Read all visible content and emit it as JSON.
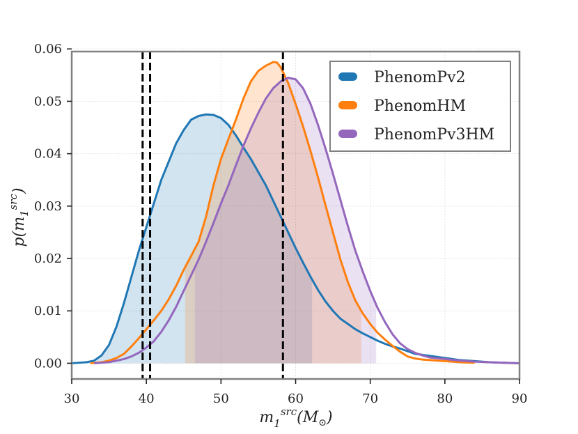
{
  "chart_data": {
    "type": "area",
    "title": "",
    "xlabel": "m₁ˢʳᶜ (M⊙)",
    "ylabel": "p(m₁ˢʳᶜ)",
    "xlim": [
      30,
      90
    ],
    "ylim": [
      -0.003,
      0.0595
    ],
    "xticks": [
      30,
      40,
      50,
      60,
      70,
      80,
      90
    ],
    "xtick_labels": [
      "30",
      "40",
      "50",
      "60",
      "70",
      "80",
      "90"
    ],
    "yticks": [
      0.0,
      0.01,
      0.02,
      0.03,
      0.04,
      0.05,
      0.06
    ],
    "ytick_labels": [
      "0.00",
      "0.01",
      "0.02",
      "0.03",
      "0.04",
      "0.05",
      "0.06"
    ],
    "grid": true,
    "legend_position": "top-right",
    "vlines": [
      39.5,
      40.5,
      58.3
    ],
    "series": [
      {
        "name": "PhenomPv2",
        "color": "#1f77b4",
        "shade_range": [
          30.0,
          62.2
        ],
        "points": [
          [
            30.0,
            0.0
          ],
          [
            32.0,
            0.0002
          ],
          [
            33.0,
            0.0005
          ],
          [
            34.0,
            0.0015
          ],
          [
            35.0,
            0.0035
          ],
          [
            36.0,
            0.007
          ],
          [
            37.0,
            0.0115
          ],
          [
            38.0,
            0.0165
          ],
          [
            39.0,
            0.0215
          ],
          [
            40.0,
            0.026
          ],
          [
            41.0,
            0.0305
          ],
          [
            42.0,
            0.035
          ],
          [
            43.0,
            0.0385
          ],
          [
            44.0,
            0.042
          ],
          [
            45.0,
            0.0445
          ],
          [
            46.0,
            0.0465
          ],
          [
            47.0,
            0.0472
          ],
          [
            48.0,
            0.0475
          ],
          [
            49.0,
            0.0474
          ],
          [
            50.0,
            0.0468
          ],
          [
            51.0,
            0.0455
          ],
          [
            52.0,
            0.0435
          ],
          [
            53.0,
            0.0412
          ],
          [
            54.0,
            0.039
          ],
          [
            55.0,
            0.0365
          ],
          [
            56.0,
            0.034
          ],
          [
            57.0,
            0.031
          ],
          [
            58.0,
            0.028
          ],
          [
            59.0,
            0.025
          ],
          [
            60.0,
            0.022
          ],
          [
            61.0,
            0.0192
          ],
          [
            62.0,
            0.0165
          ],
          [
            63.0,
            0.014
          ],
          [
            64.0,
            0.0118
          ],
          [
            65.0,
            0.01
          ],
          [
            66.0,
            0.0085
          ],
          [
            67.0,
            0.0075
          ],
          [
            68.0,
            0.0065
          ],
          [
            69.0,
            0.0057
          ],
          [
            70.0,
            0.005
          ],
          [
            71.0,
            0.0043
          ],
          [
            72.0,
            0.0037
          ],
          [
            73.0,
            0.0032
          ],
          [
            74.0,
            0.0028
          ],
          [
            75.0,
            0.0023
          ],
          [
            76.0,
            0.0018
          ],
          [
            77.0,
            0.0016
          ],
          [
            78.0,
            0.0014
          ],
          [
            79.0,
            0.0012
          ],
          [
            80.0,
            0.001
          ],
          [
            81.0,
            0.0008
          ],
          [
            82.0,
            0.0006
          ],
          [
            84.0,
            0.0004
          ],
          [
            86.0,
            0.0002
          ],
          [
            88.0,
            0.0001
          ],
          [
            90.0,
            0.0
          ]
        ]
      },
      {
        "name": "PhenomHM",
        "color": "#ff7f0e",
        "shade_range": [
          45.2,
          68.8
        ],
        "points": [
          [
            32.5,
            0.0
          ],
          [
            34.0,
            0.0002
          ],
          [
            35.0,
            0.0005
          ],
          [
            36.0,
            0.001
          ],
          [
            37.0,
            0.0018
          ],
          [
            38.0,
            0.0032
          ],
          [
            39.0,
            0.0048
          ],
          [
            40.0,
            0.0065
          ],
          [
            41.0,
            0.0082
          ],
          [
            42.0,
            0.01
          ],
          [
            43.0,
            0.0122
          ],
          [
            44.0,
            0.0148
          ],
          [
            45.0,
            0.0178
          ],
          [
            46.0,
            0.0205
          ],
          [
            47.0,
            0.0232
          ],
          [
            48.0,
            0.028
          ],
          [
            49.0,
            0.034
          ],
          [
            50.0,
            0.039
          ],
          [
            51.0,
            0.0428
          ],
          [
            52.0,
            0.0465
          ],
          [
            53.0,
            0.0505
          ],
          [
            54.0,
            0.0538
          ],
          [
            55.0,
            0.0558
          ],
          [
            56.0,
            0.0568
          ],
          [
            57.0,
            0.0575
          ],
          [
            57.5,
            0.0574
          ],
          [
            58.0,
            0.0565
          ],
          [
            59.0,
            0.0535
          ],
          [
            60.0,
            0.0495
          ],
          [
            61.0,
            0.0452
          ],
          [
            62.0,
            0.0405
          ],
          [
            63.0,
            0.0355
          ],
          [
            64.0,
            0.0302
          ],
          [
            65.0,
            0.025
          ],
          [
            66.0,
            0.0198
          ],
          [
            67.0,
            0.0155
          ],
          [
            68.0,
            0.012
          ],
          [
            69.0,
            0.0095
          ],
          [
            70.0,
            0.0075
          ],
          [
            71.0,
            0.0058
          ],
          [
            72.0,
            0.0045
          ],
          [
            73.0,
            0.0033
          ],
          [
            74.0,
            0.0022
          ],
          [
            75.0,
            0.0013
          ],
          [
            76.0,
            0.0009
          ],
          [
            77.0,
            0.0007
          ],
          [
            78.0,
            0.0006
          ],
          [
            80.0,
            0.0004
          ],
          [
            82.0,
            0.0002
          ],
          [
            84.0,
            0.0001
          ]
        ]
      },
      {
        "name": "PhenomPv3HM",
        "color": "#9467bd",
        "shade_range": [
          46.5,
          70.8
        ],
        "points": [
          [
            33.0,
            0.0
          ],
          [
            35.0,
            0.0002
          ],
          [
            36.0,
            0.0005
          ],
          [
            37.0,
            0.0008
          ],
          [
            38.0,
            0.0013
          ],
          [
            39.0,
            0.002
          ],
          [
            40.0,
            0.003
          ],
          [
            41.0,
            0.0042
          ],
          [
            42.0,
            0.006
          ],
          [
            43.0,
            0.0082
          ],
          [
            44.0,
            0.0108
          ],
          [
            45.0,
            0.0138
          ],
          [
            46.0,
            0.0168
          ],
          [
            47.0,
            0.0198
          ],
          [
            48.0,
            0.0232
          ],
          [
            49.0,
            0.0268
          ],
          [
            50.0,
            0.0305
          ],
          [
            51.0,
            0.034
          ],
          [
            52.0,
            0.0378
          ],
          [
            53.0,
            0.0415
          ],
          [
            54.0,
            0.0448
          ],
          [
            55.0,
            0.0478
          ],
          [
            56.0,
            0.0505
          ],
          [
            57.0,
            0.0525
          ],
          [
            58.0,
            0.0538
          ],
          [
            59.0,
            0.0545
          ],
          [
            60.0,
            0.0542
          ],
          [
            61.0,
            0.0525
          ],
          [
            62.0,
            0.0495
          ],
          [
            63.0,
            0.0455
          ],
          [
            64.0,
            0.041
          ],
          [
            65.0,
            0.0362
          ],
          [
            66.0,
            0.0312
          ],
          [
            67.0,
            0.0262
          ],
          [
            68.0,
            0.0215
          ],
          [
            69.0,
            0.0175
          ],
          [
            70.0,
            0.0138
          ],
          [
            71.0,
            0.0105
          ],
          [
            72.0,
            0.0078
          ],
          [
            73.0,
            0.0055
          ],
          [
            74.0,
            0.0038
          ],
          [
            75.0,
            0.0027
          ],
          [
            76.0,
            0.002
          ],
          [
            77.0,
            0.0015
          ],
          [
            78.0,
            0.0011
          ],
          [
            80.0,
            0.0008
          ],
          [
            82.0,
            0.0005
          ],
          [
            84.0,
            0.0003
          ],
          [
            86.0,
            0.0002
          ],
          [
            88.0,
            0.0001
          ],
          [
            90.0,
            0.0
          ]
        ]
      }
    ]
  }
}
